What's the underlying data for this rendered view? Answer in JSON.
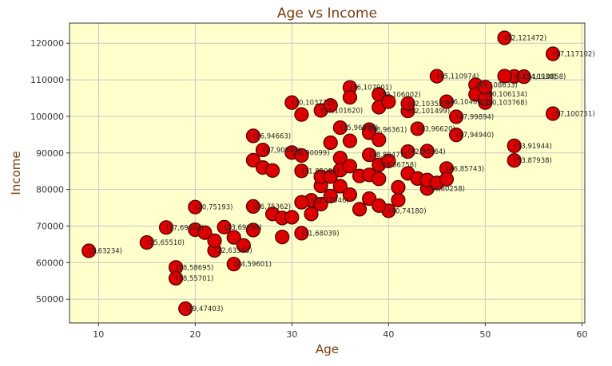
{
  "chart_data": {
    "type": "scatter",
    "title": "Age vs Income",
    "xlabel": "Age",
    "ylabel": "Income",
    "xlim": [
      7,
      60.3
    ],
    "ylim": [
      43500,
      125500
    ],
    "x_ticks": [
      10,
      20,
      30,
      40,
      50,
      60
    ],
    "y_ticks": [
      50000,
      60000,
      70000,
      80000,
      90000,
      100000,
      110000,
      120000
    ],
    "grid": true,
    "legend": "none",
    "colors": {
      "plot_background": "#ffffcc",
      "point_fill": "#dd0000",
      "point_edge": "#4a0000",
      "grid": "#c8c8c8",
      "axis": "#333333",
      "title_text": "#7a3d0b"
    },
    "points": [
      {
        "x": 9,
        "y": 63234,
        "label": "(9,63234)"
      },
      {
        "x": 15,
        "y": 65510,
        "label": "(15,65510)"
      },
      {
        "x": 19,
        "y": 47403,
        "label": "(19,47403)"
      },
      {
        "x": 18,
        "y": 58695,
        "label": "(18,58695)"
      },
      {
        "x": 18,
        "y": 55701,
        "label": "(18,55701)"
      },
      {
        "x": 24,
        "y": 59601,
        "label": "(24,59601)"
      },
      {
        "x": 17,
        "y": 69604,
        "label": "(17,69604)"
      },
      {
        "x": 20,
        "y": 75193,
        "label": "(20,75193)"
      },
      {
        "x": 22,
        "y": 63343,
        "label": "(22,63343)"
      },
      {
        "x": 23,
        "y": 69698,
        "label": "(23,69698)"
      },
      {
        "x": 26,
        "y": 94663,
        "label": "(26,94663)"
      },
      {
        "x": 26,
        "y": 75362,
        "label": "(26,75362)"
      },
      {
        "x": 27,
        "y": 90807,
        "label": "(27,90807)"
      },
      {
        "x": 30,
        "y": 103771,
        "label": "(30,103771)"
      },
      {
        "x": 30,
        "y": 90099,
        "label": "(30,90099)"
      },
      {
        "x": 31,
        "y": 85089,
        "label": "(31,85089)"
      },
      {
        "x": 31,
        "y": 68039,
        "label": "(31,68039)"
      },
      {
        "x": 32,
        "y": 77046,
        "label": "(32,77046)"
      },
      {
        "x": 33,
        "y": 101620,
        "label": "(33,101620)"
      },
      {
        "x": 35,
        "y": 96910,
        "label": "(35,96910)"
      },
      {
        "x": 36,
        "y": 107901,
        "label": "(36,107901)"
      },
      {
        "x": 38,
        "y": 96361,
        "label": "(38,96361)"
      },
      {
        "x": 38,
        "y": 89477,
        "label": "(38,89477)"
      },
      {
        "x": 39,
        "y": 106002,
        "label": "(39,106002)"
      },
      {
        "x": 39,
        "y": 86758,
        "label": "(39,86758)"
      },
      {
        "x": 40,
        "y": 74180,
        "label": "(40,74180)"
      },
      {
        "x": 42,
        "y": 101499,
        "label": "(42,101499)"
      },
      {
        "x": 42,
        "y": 103520,
        "label": "(42,103520)"
      },
      {
        "x": 42,
        "y": 90364,
        "label": "(42,90364)"
      },
      {
        "x": 43,
        "y": 96620,
        "label": "(43,96620)"
      },
      {
        "x": 44,
        "y": 80258,
        "label": "(44,80258)"
      },
      {
        "x": 45,
        "y": 110974,
        "label": "(45,110974)"
      },
      {
        "x": 46,
        "y": 85743,
        "label": "(46,85743)"
      },
      {
        "x": 46,
        "y": 104000,
        "label": "(46,104000)"
      },
      {
        "x": 47,
        "y": 99894,
        "label": "(47,99894)"
      },
      {
        "x": 47,
        "y": 94940,
        "label": "(47,94940)"
      },
      {
        "x": 49,
        "y": 108633,
        "label": "(49,108633)"
      },
      {
        "x": 50,
        "y": 106134,
        "label": "(50,106134)"
      },
      {
        "x": 50,
        "y": 103768,
        "label": "(50,103768)"
      },
      {
        "x": 52,
        "y": 121472,
        "label": "(52,121472)"
      },
      {
        "x": 53,
        "y": 91944,
        "label": "(53,91944)"
      },
      {
        "x": 53,
        "y": 87938,
        "label": "(53,87938)"
      },
      {
        "x": 53,
        "y": 110930,
        "label": "(53,110930)"
      },
      {
        "x": 54,
        "y": 110858,
        "label": "(54,110858)"
      },
      {
        "x": 57,
        "y": 117102,
        "label": "(57,117102)"
      },
      {
        "x": 57,
        "y": 100751,
        "label": "(57,100751)"
      },
      {
        "x": 20,
        "y": 69000,
        "label": ""
      },
      {
        "x": 21,
        "y": 68200,
        "label": ""
      },
      {
        "x": 22,
        "y": 66000,
        "label": ""
      },
      {
        "x": 24,
        "y": 66900,
        "label": ""
      },
      {
        "x": 25,
        "y": 64700,
        "label": ""
      },
      {
        "x": 26,
        "y": 68900,
        "label": ""
      },
      {
        "x": 26,
        "y": 88000,
        "label": ""
      },
      {
        "x": 27,
        "y": 86000,
        "label": ""
      },
      {
        "x": 28,
        "y": 85200,
        "label": ""
      },
      {
        "x": 28,
        "y": 73300,
        "label": ""
      },
      {
        "x": 29,
        "y": 67000,
        "label": ""
      },
      {
        "x": 29,
        "y": 72200,
        "label": ""
      },
      {
        "x": 30,
        "y": 72400,
        "label": ""
      },
      {
        "x": 31,
        "y": 89300,
        "label": ""
      },
      {
        "x": 31,
        "y": 100500,
        "label": ""
      },
      {
        "x": 31,
        "y": 76500,
        "label": ""
      },
      {
        "x": 32,
        "y": 73300,
        "label": ""
      },
      {
        "x": 33,
        "y": 81000,
        "label": ""
      },
      {
        "x": 33,
        "y": 83500,
        "label": ""
      },
      {
        "x": 33,
        "y": 76000,
        "label": ""
      },
      {
        "x": 34,
        "y": 103000,
        "label": ""
      },
      {
        "x": 34,
        "y": 92800,
        "label": ""
      },
      {
        "x": 34,
        "y": 83500,
        "label": ""
      },
      {
        "x": 34,
        "y": 78200,
        "label": ""
      },
      {
        "x": 35,
        "y": 88600,
        "label": ""
      },
      {
        "x": 35,
        "y": 85300,
        "label": ""
      },
      {
        "x": 35,
        "y": 80900,
        "label": ""
      },
      {
        "x": 36,
        "y": 105200,
        "label": ""
      },
      {
        "x": 36,
        "y": 93300,
        "label": ""
      },
      {
        "x": 36,
        "y": 86400,
        "label": ""
      },
      {
        "x": 36,
        "y": 78600,
        "label": ""
      },
      {
        "x": 37,
        "y": 83700,
        "label": ""
      },
      {
        "x": 37,
        "y": 74600,
        "label": ""
      },
      {
        "x": 38,
        "y": 95500,
        "label": ""
      },
      {
        "x": 38,
        "y": 84000,
        "label": ""
      },
      {
        "x": 38,
        "y": 77500,
        "label": ""
      },
      {
        "x": 39,
        "y": 102500,
        "label": ""
      },
      {
        "x": 39,
        "y": 93600,
        "label": ""
      },
      {
        "x": 39,
        "y": 75600,
        "label": ""
      },
      {
        "x": 39,
        "y": 82900,
        "label": ""
      },
      {
        "x": 40,
        "y": 104000,
        "label": ""
      },
      {
        "x": 40,
        "y": 87800,
        "label": ""
      },
      {
        "x": 41,
        "y": 80600,
        "label": ""
      },
      {
        "x": 41,
        "y": 77100,
        "label": ""
      },
      {
        "x": 42,
        "y": 84400,
        "label": ""
      },
      {
        "x": 43,
        "y": 83000,
        "label": ""
      },
      {
        "x": 44,
        "y": 82600,
        "label": ""
      },
      {
        "x": 44,
        "y": 90500,
        "label": ""
      },
      {
        "x": 45,
        "y": 81800,
        "label": ""
      },
      {
        "x": 46,
        "y": 82800,
        "label": ""
      },
      {
        "x": 49,
        "y": 106000,
        "label": ""
      },
      {
        "x": 50,
        "y": 104800,
        "label": ""
      },
      {
        "x": 50,
        "y": 108000,
        "label": ""
      },
      {
        "x": 52,
        "y": 111000,
        "label": ""
      }
    ]
  }
}
